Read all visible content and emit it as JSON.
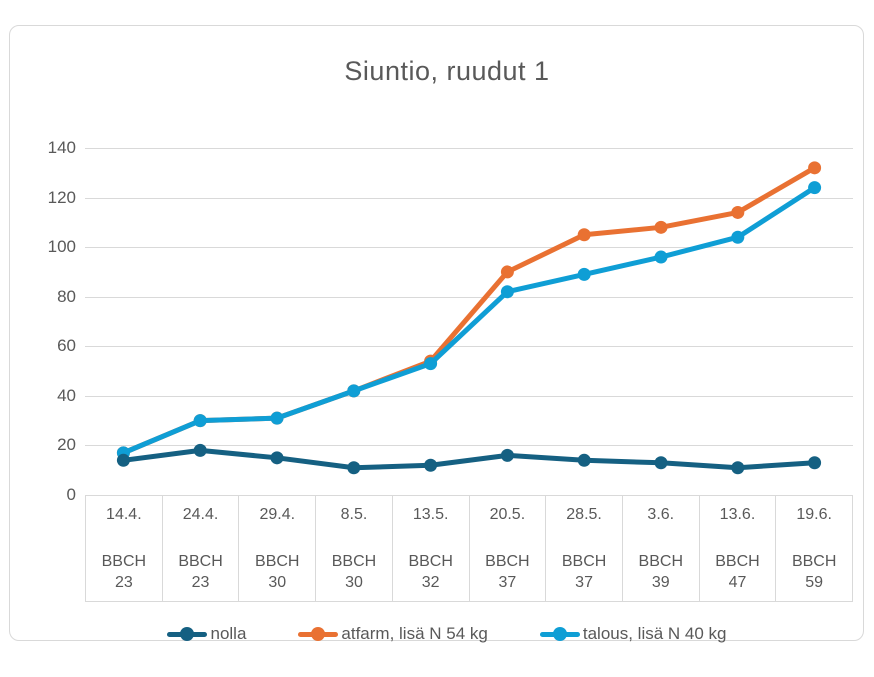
{
  "title": "Siuntio, ruudut 1",
  "colors": {
    "nolla": "#156082",
    "atfarm": "#E97132",
    "talous": "#0F9ED5",
    "gridline": "#D9D9D9",
    "text": "#595959",
    "frame_border": "#D9D9D9"
  },
  "chart_data": {
    "type": "line",
    "title": "Siuntio, ruudut 1",
    "categories": [
      "14.4.",
      "24.4.",
      "29.4.",
      "8.5.",
      "13.5.",
      "20.5.",
      "28.5.",
      "3.6.",
      "13.6.",
      "19.6."
    ],
    "category_sublabel": "BBCH",
    "bbch": [
      "23",
      "23",
      "30",
      "30",
      "32",
      "37",
      "37",
      "39",
      "47",
      "59"
    ],
    "series": [
      {
        "key": "nolla",
        "name": "nolla",
        "color": "#156082",
        "values": [
          14,
          18,
          15,
          11,
          12,
          16,
          14,
          13,
          11,
          13
        ]
      },
      {
        "key": "atfarm",
        "name": "atfarm, lisä N 54 kg",
        "color": "#E97132",
        "values": [
          17,
          30,
          31,
          42,
          54,
          90,
          105,
          108,
          114,
          132
        ]
      },
      {
        "key": "talous",
        "name": "talous, lisä N 40 kg",
        "color": "#0F9ED5",
        "values": [
          17,
          30,
          31,
          42,
          53,
          82,
          89,
          96,
          104,
          124
        ]
      }
    ],
    "ylim": [
      0,
      140
    ],
    "ytick_step": 20,
    "yticks": [
      0,
      20,
      40,
      60,
      80,
      100,
      120,
      140
    ],
    "grid": "horizontal",
    "legend_position": "bottom",
    "legend_entries": [
      "nolla",
      "atfarm, lisä N 54 kg",
      "talous, lisä N 40 kg"
    ]
  }
}
